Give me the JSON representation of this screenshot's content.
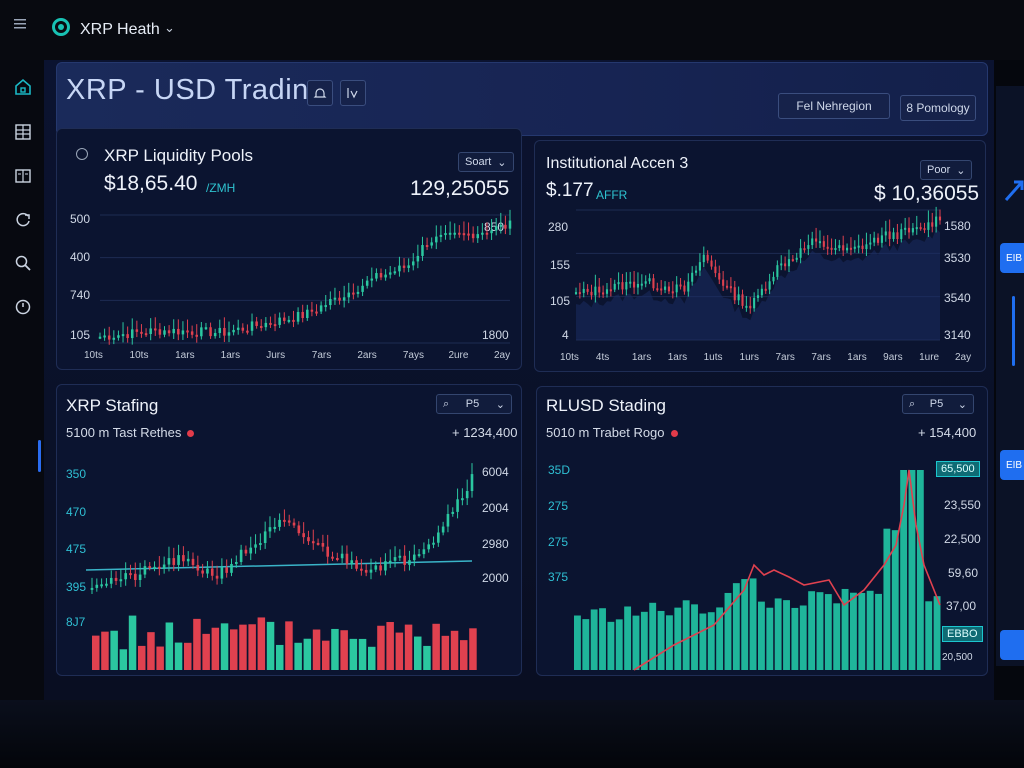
{
  "app": {
    "name": "XRP Heath"
  },
  "page": {
    "title": "XRP - USD Trading"
  },
  "toolbar": {
    "btn1": "Fel Nehregion",
    "btn2": "8 Pomology"
  },
  "panels": {
    "liquidity": {
      "title": "XRP Liquidity Pools",
      "sort_label": "Soart",
      "price": "$18,65.40",
      "price_sub": "/ZMH",
      "value": "129,25055",
      "y_left": [
        "500",
        "400",
        "740",
        "105"
      ],
      "y_right": [
        "850",
        "1800"
      ],
      "x_labels": [
        "10ts",
        "10ts",
        "1ars",
        "1ars",
        "Jurs",
        "7ars",
        "2ars",
        "7ays",
        "2ure",
        "2ay"
      ]
    },
    "institutional": {
      "title": "Institutional Accen 3",
      "sort_label": "Poor",
      "price": "$.177",
      "price_sub": "AFFR",
      "value": "$ 10,36055",
      "y_left": [
        "280",
        "155",
        "105",
        "4"
      ],
      "y_right": [
        "1580",
        "3530",
        "3540",
        "3140"
      ],
      "x_labels": [
        "10ts",
        "4ts",
        "1ars",
        "1ars",
        "1uts",
        "1urs",
        "7ars",
        "7ars",
        "1ars",
        "9ars",
        "1ure",
        "2ay"
      ]
    },
    "staking": {
      "title": "XRP Stafing",
      "dropdown": "P5",
      "sub": "5100 m Tast Rethes",
      "value": "+ 1234,400",
      "y_left": [
        "350",
        "470",
        "475",
        "395",
        "8J7"
      ],
      "y_right": [
        "6004",
        "2004",
        "2980",
        "2000"
      ]
    },
    "rlusd": {
      "title": "RLUSD Stading",
      "dropdown": "P5",
      "sub": "5010 m Trabet Rogo",
      "value": "+ 154,400",
      "y_left": [
        "35D",
        "275",
        "275",
        "375"
      ],
      "y_right": [
        "65,500",
        "23,550",
        "22,500",
        "59,60",
        "37,00",
        "EBBO",
        "20,500"
      ]
    }
  },
  "right_panel": {
    "btn1": "EIB",
    "btn2": "EIB",
    "btn3": ""
  },
  "colors": {
    "accent": "#18c2b4",
    "up": "#2bc7a0",
    "down": "#e0414f",
    "bar_teal": "#1fb59a"
  }
}
